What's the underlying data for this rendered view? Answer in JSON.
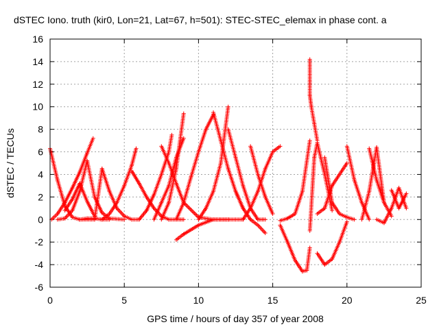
{
  "chart_data": {
    "type": "scatter",
    "title": "dSTEC Iono. truth (kir0, Lon=21, Lat=67, h=501): STEC-STEC_elemax in phase cont. a",
    "xlabel": "GPS time / hours of day 357 of year 2008",
    "ylabel": "dSTEC  / TECUs",
    "xlim": [
      0,
      25
    ],
    "ylim": [
      -6,
      16
    ],
    "x_ticks": [
      0,
      5,
      10,
      15,
      20,
      25
    ],
    "x_tick_labels": [
      "0",
      "5",
      "10",
      "15",
      "20",
      "25"
    ],
    "y_ticks": [
      -6,
      -4,
      -2,
      0,
      2,
      4,
      6,
      8,
      10,
      12,
      14,
      16
    ],
    "y_tick_labels": [
      "-6",
      "-4",
      "-2",
      "0",
      "2",
      "4",
      "6",
      "8",
      "10",
      "12",
      "14",
      "16"
    ],
    "grid": true,
    "marker": "+",
    "marker_color": "#ff0000",
    "series": [
      {
        "x": [
          0.0,
          0.5,
          1.0,
          1.5,
          2.0,
          2.5,
          3.0,
          3.5,
          4.0
        ],
        "y": [
          6.3,
          3.5,
          1.2,
          0.2,
          0.0,
          0.1,
          0.1,
          0.0,
          0.0
        ]
      },
      {
        "x": [
          0.1,
          0.5,
          1.0,
          1.5,
          2.0,
          2.5,
          2.9
        ],
        "y": [
          0.0,
          0.5,
          1.5,
          2.8,
          4.2,
          5.9,
          7.2
        ]
      },
      {
        "x": [
          0.5,
          1.0,
          1.5,
          2.0,
          2.5,
          3.0,
          3.5,
          4.0,
          5.0
        ],
        "y": [
          0.0,
          0.1,
          0.8,
          2.5,
          5.2,
          2.0,
          0.6,
          0.1,
          0.0
        ]
      },
      {
        "x": [
          1.0,
          1.5,
          2.0,
          2.5,
          3.0
        ],
        "y": [
          0.8,
          1.8,
          3.2,
          1.6,
          0.3
        ]
      },
      {
        "x": [
          2.0,
          3.0,
          3.5,
          4.0,
          4.5,
          5.0,
          5.5,
          6.0
        ],
        "y": [
          0.0,
          0.0,
          4.5,
          2.5,
          1.0,
          0.3,
          0.0,
          0.0
        ]
      },
      {
        "x": [
          3.5,
          4.0,
          4.5,
          5.0,
          5.5,
          5.8
        ],
        "y": [
          0.0,
          0.5,
          1.5,
          3.0,
          4.8,
          6.3
        ]
      },
      {
        "x": [
          5.5,
          6.0,
          6.5,
          7.0,
          7.5,
          8.0,
          9.0
        ],
        "y": [
          4.3,
          3.2,
          2.0,
          1.0,
          0.3,
          0.0,
          0.0
        ]
      },
      {
        "x": [
          6.0,
          6.5,
          7.0,
          7.5,
          8.0,
          8.2
        ],
        "y": [
          0.0,
          0.8,
          2.2,
          4.0,
          6.0,
          7.5
        ]
      },
      {
        "x": [
          7.0,
          7.5,
          8.0,
          8.5,
          9.0
        ],
        "y": [
          0.0,
          1.5,
          3.0,
          5.5,
          7.2
        ]
      },
      {
        "x": [
          7.5,
          8.0,
          8.5,
          9.0
        ],
        "y": [
          0.0,
          1.5,
          4.5,
          9.4
        ]
      },
      {
        "x": [
          7.5,
          8.0,
          8.5,
          9.0,
          10.0,
          11.0,
          12.0
        ],
        "y": [
          6.5,
          5.0,
          3.2,
          1.5,
          0.2,
          0.0,
          0.0
        ]
      },
      {
        "x": [
          8.5,
          9.0,
          10.0,
          11.0,
          12.0,
          13.0
        ],
        "y": [
          -1.8,
          -1.3,
          -0.5,
          0.0,
          0.0,
          0.0
        ]
      },
      {
        "x": [
          8.5,
          9.0,
          9.5,
          10.0,
          10.5,
          11.0
        ],
        "y": [
          0.0,
          1.5,
          3.8,
          6.0,
          8.0,
          9.3
        ]
      },
      {
        "x": [
          10.0,
          10.5,
          11.0,
          11.5,
          12.0
        ],
        "y": [
          0.0,
          1.0,
          2.5,
          5.0,
          10.0
        ]
      },
      {
        "x": [
          11.0,
          11.5,
          12.0,
          12.5,
          13.0
        ],
        "y": [
          9.5,
          7.0,
          4.5,
          2.5,
          1.0
        ]
      },
      {
        "x": [
          12.0,
          12.5,
          13.0,
          13.5,
          14.0,
          14.5
        ],
        "y": [
          8.0,
          5.5,
          3.0,
          1.0,
          0.0,
          0.0
        ]
      },
      {
        "x": [
          12.5,
          13.0,
          13.5,
          14.0,
          14.5
        ],
        "y": [
          2.5,
          1.0,
          0.0,
          -0.5,
          -1.2
        ]
      },
      {
        "x": [
          13.0,
          13.5,
          14.0,
          14.5,
          15.0,
          15.5
        ],
        "y": [
          0.0,
          1.0,
          2.5,
          4.5,
          6.0,
          6.5
        ]
      },
      {
        "x": [
          13.5,
          14.0,
          14.5,
          15.0
        ],
        "y": [
          6.5,
          4.0,
          2.0,
          0.5
        ]
      },
      {
        "x": [
          15.5,
          16.0,
          16.5,
          17.0,
          17.3,
          17.5
        ],
        "y": [
          -0.5,
          -2.0,
          -3.6,
          -4.6,
          -4.5,
          -2.5
        ]
      },
      {
        "x": [
          15.5,
          16.0,
          16.5,
          17.0,
          17.5
        ],
        "y": [
          -0.1,
          0.1,
          0.5,
          2.5,
          7.0
        ]
      },
      {
        "x": [
          17.5,
          17.5,
          17.5,
          17.6,
          17.8,
          18.0
        ],
        "y": [
          14.2,
          12.2,
          11.0,
          10.0,
          8.5,
          7.0
        ]
      },
      {
        "x": [
          17.5,
          17.8,
          18.0,
          18.5,
          19.0
        ],
        "y": [
          -1.0,
          5.5,
          6.8,
          4.0,
          0.8
        ]
      },
      {
        "x": [
          18.0,
          18.5,
          19.0,
          19.5,
          20.0
        ],
        "y": [
          -3.0,
          -4.0,
          -3.5,
          -2.0,
          -0.2
        ]
      },
      {
        "x": [
          18.0,
          18.5,
          19.0,
          19.5,
          20.0
        ],
        "y": [
          0.5,
          1.0,
          3.0,
          4.0,
          5.0
        ]
      },
      {
        "x": [
          18.5,
          19.0,
          19.5,
          20.0,
          20.5
        ],
        "y": [
          5.5,
          1.5,
          0.5,
          0.2,
          0.0
        ]
      },
      {
        "x": [
          20.0,
          20.5,
          21.0,
          21.5
        ],
        "y": [
          6.5,
          3.5,
          1.5,
          0.0
        ]
      },
      {
        "x": [
          21.0,
          21.5,
          22.0,
          22.5
        ],
        "y": [
          0.0,
          2.5,
          6.4,
          1.5
        ]
      },
      {
        "x": [
          21.5,
          22.0,
          22.5,
          23.0
        ],
        "y": [
          6.3,
          3.5,
          1.5,
          0.3
        ]
      },
      {
        "x": [
          22.0,
          22.5,
          23.0,
          23.5,
          24.0
        ],
        "y": [
          0.0,
          -0.3,
          1.0,
          2.8,
          1.0
        ]
      },
      {
        "x": [
          23.0,
          23.5,
          24.0
        ],
        "y": [
          2.6,
          1.0,
          2.3
        ]
      }
    ]
  }
}
